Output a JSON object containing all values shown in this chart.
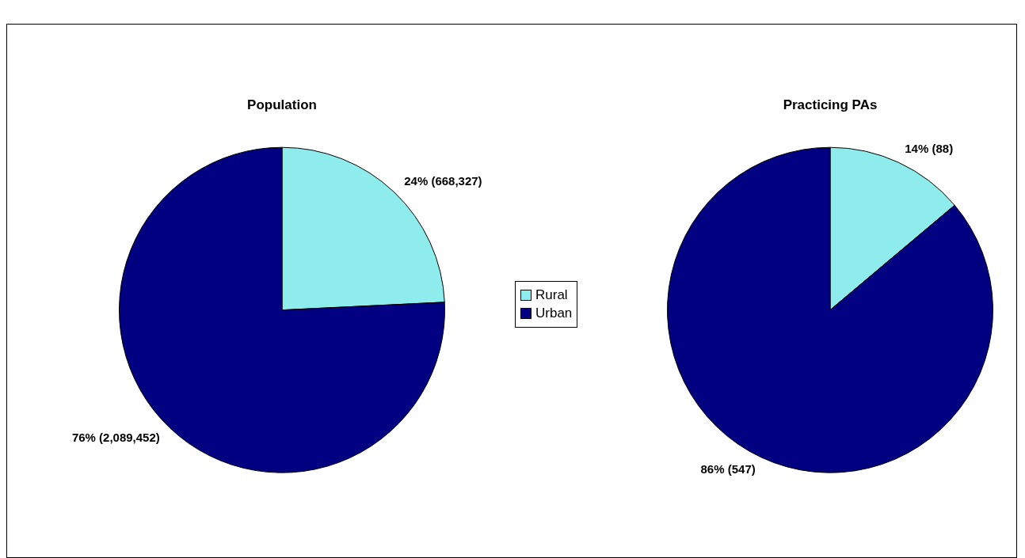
{
  "chart_data": [
    {
      "type": "pie",
      "title": "Population",
      "categories": [
        "Rural",
        "Urban"
      ],
      "values": [
        668327,
        2089452
      ],
      "colors": [
        "#8fecec",
        "#000080"
      ],
      "value_labels": [
        "24% (668,327)",
        "76% (2,089,452)"
      ],
      "legend": "right"
    },
    {
      "type": "pie",
      "title": "Practicing PAs",
      "categories": [
        null,
        null
      ],
      "values": [
        88,
        547
      ],
      "colors": [
        "#8fecec",
        "#000080"
      ],
      "value_labels": [
        "14% (88)",
        "86% (547)"
      ],
      "legend": false
    }
  ]
}
